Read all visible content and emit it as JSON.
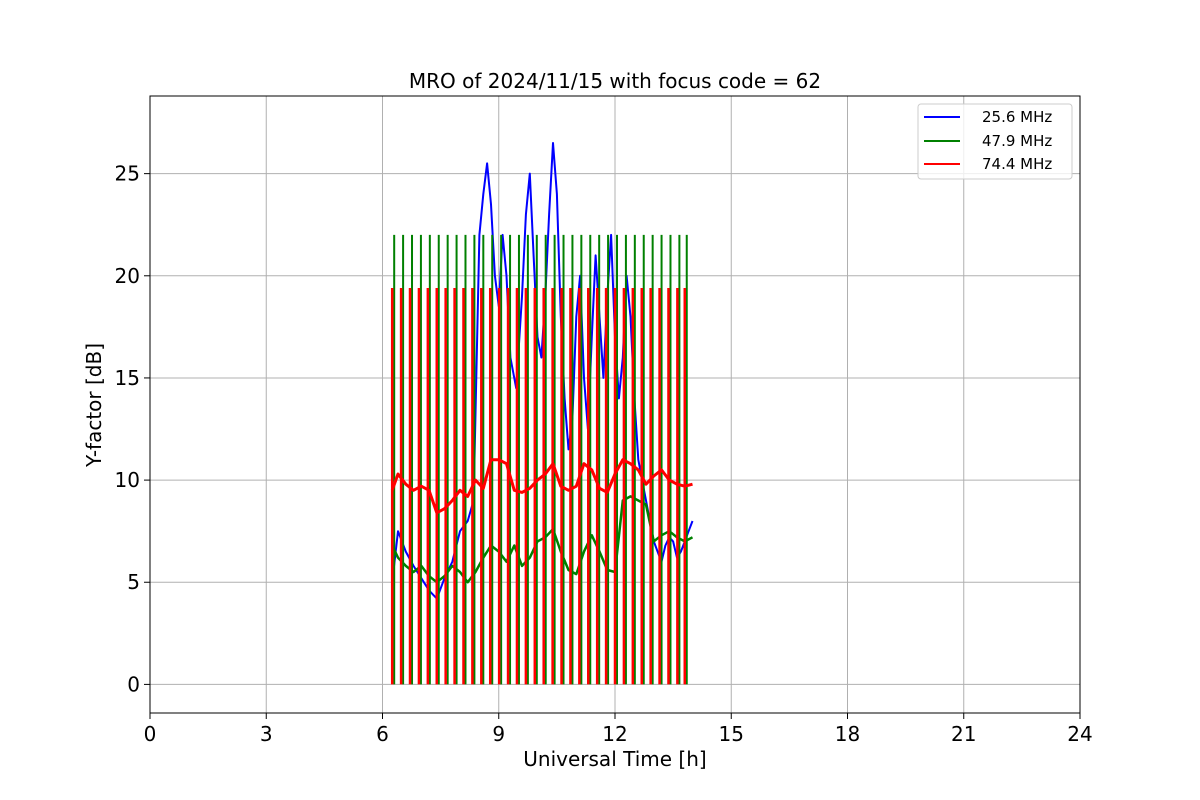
{
  "chart_data": {
    "type": "line",
    "title": "MRO of 2024/11/15 with focus code = 62",
    "xlabel": "Universal Time [h]",
    "ylabel": "Y-factor [dB]",
    "xlim": [
      0,
      24
    ],
    "ylim": [
      -1.4,
      28.8
    ],
    "xticks": [
      0,
      3,
      6,
      9,
      12,
      15,
      18,
      21,
      24
    ],
    "yticks": [
      0,
      5,
      10,
      15,
      20,
      25
    ],
    "grid": true,
    "legend_position": "top-right",
    "calibration_pulses": {
      "x": [
        6.25,
        6.48,
        6.71,
        6.94,
        7.17,
        7.4,
        7.63,
        7.86,
        8.09,
        8.32,
        8.55,
        8.78,
        9.01,
        9.24,
        9.47,
        9.7,
        9.93,
        10.16,
        10.39,
        10.62,
        10.85,
        11.08,
        11.31,
        11.54,
        11.77,
        12.0,
        12.23,
        12.46,
        12.69,
        12.92,
        13.15,
        13.38,
        13.61,
        13.8
      ],
      "min": 0,
      "green_max": 22.0,
      "red_max": 19.4
    },
    "series": [
      {
        "name": "25.6 MHz",
        "color": "#0000ff",
        "x": [
          6.25,
          6.4,
          6.6,
          6.8,
          7.0,
          7.2,
          7.4,
          7.6,
          7.8,
          8.0,
          8.2,
          8.35,
          8.5,
          8.6,
          8.7,
          8.8,
          8.9,
          9.0,
          9.1,
          9.2,
          9.3,
          9.45,
          9.6,
          9.7,
          9.8,
          9.9,
          10.0,
          10.1,
          10.2,
          10.3,
          10.4,
          10.5,
          10.6,
          10.7,
          10.8,
          10.9,
          11.0,
          11.1,
          11.2,
          11.3,
          11.4,
          11.5,
          11.6,
          11.7,
          11.8,
          11.9,
          12.0,
          12.1,
          12.2,
          12.3,
          12.4,
          12.5,
          12.6,
          12.7,
          12.8,
          12.9,
          13.0,
          13.1,
          13.2,
          13.3,
          13.4,
          13.5,
          13.6,
          13.7,
          13.8,
          13.9,
          14.0
        ],
        "values": [
          5.0,
          7.5,
          6.5,
          5.8,
          5.2,
          4.6,
          4.2,
          5.2,
          6.0,
          7.5,
          8.0,
          9.0,
          22.0,
          24.0,
          25.5,
          23.5,
          20.0,
          18.5,
          22.0,
          20.0,
          16.0,
          14.5,
          19.0,
          23.0,
          25.0,
          21.0,
          17.0,
          16.0,
          19.0,
          23.0,
          26.5,
          24.0,
          18.0,
          14.0,
          11.5,
          13.0,
          18.0,
          20.0,
          15.0,
          12.5,
          17.0,
          21.0,
          18.0,
          15.0,
          19.0,
          22.0,
          17.0,
          14.0,
          16.0,
          20.0,
          18.0,
          14.0,
          11.0,
          10.0,
          9.0,
          8.0,
          7.0,
          6.5,
          6.0,
          6.8,
          7.2,
          7.0,
          6.2,
          6.5,
          7.0,
          7.5,
          8.0
        ]
      },
      {
        "name": "47.9 MHz",
        "color": "#008000",
        "x": [
          6.25,
          6.4,
          6.6,
          6.8,
          7.0,
          7.2,
          7.4,
          7.6,
          7.8,
          8.0,
          8.2,
          8.4,
          8.6,
          8.8,
          9.0,
          9.2,
          9.4,
          9.6,
          9.8,
          10.0,
          10.2,
          10.4,
          10.6,
          10.8,
          11.0,
          11.2,
          11.4,
          11.6,
          11.8,
          12.0,
          12.2,
          12.4,
          12.6,
          12.8,
          13.0,
          13.2,
          13.4,
          13.6,
          13.8,
          14.0
        ],
        "values": [
          6.8,
          6.2,
          5.8,
          5.5,
          5.8,
          5.3,
          5.0,
          5.3,
          5.8,
          5.5,
          5.0,
          5.5,
          6.2,
          6.8,
          6.5,
          6.0,
          6.8,
          5.8,
          6.2,
          7.0,
          7.2,
          7.6,
          6.5,
          5.6,
          5.4,
          6.5,
          7.3,
          6.5,
          5.6,
          5.5,
          9.0,
          9.2,
          9.0,
          8.8,
          7.0,
          7.3,
          7.5,
          7.2,
          7.0,
          7.2
        ]
      },
      {
        "name": "74.4 MHz",
        "color": "#ff0000",
        "x": [
          6.25,
          6.4,
          6.6,
          6.8,
          7.0,
          7.2,
          7.4,
          7.6,
          7.8,
          8.0,
          8.2,
          8.4,
          8.6,
          8.8,
          9.0,
          9.2,
          9.4,
          9.6,
          9.8,
          10.0,
          10.2,
          10.4,
          10.6,
          10.8,
          11.0,
          11.2,
          11.4,
          11.6,
          11.8,
          12.0,
          12.2,
          12.4,
          12.6,
          12.8,
          13.0,
          13.2,
          13.4,
          13.6,
          13.8,
          14.0
        ],
        "values": [
          9.5,
          10.3,
          9.8,
          9.5,
          9.7,
          9.5,
          8.4,
          8.6,
          9.0,
          9.5,
          9.2,
          10.0,
          9.6,
          11.0,
          11.0,
          10.8,
          9.5,
          9.4,
          9.6,
          10.0,
          10.3,
          10.8,
          9.7,
          9.5,
          9.7,
          10.8,
          10.5,
          9.6,
          9.4,
          10.3,
          11.0,
          10.8,
          10.5,
          9.8,
          10.2,
          10.5,
          10.0,
          9.8,
          9.7,
          9.8
        ]
      }
    ]
  }
}
